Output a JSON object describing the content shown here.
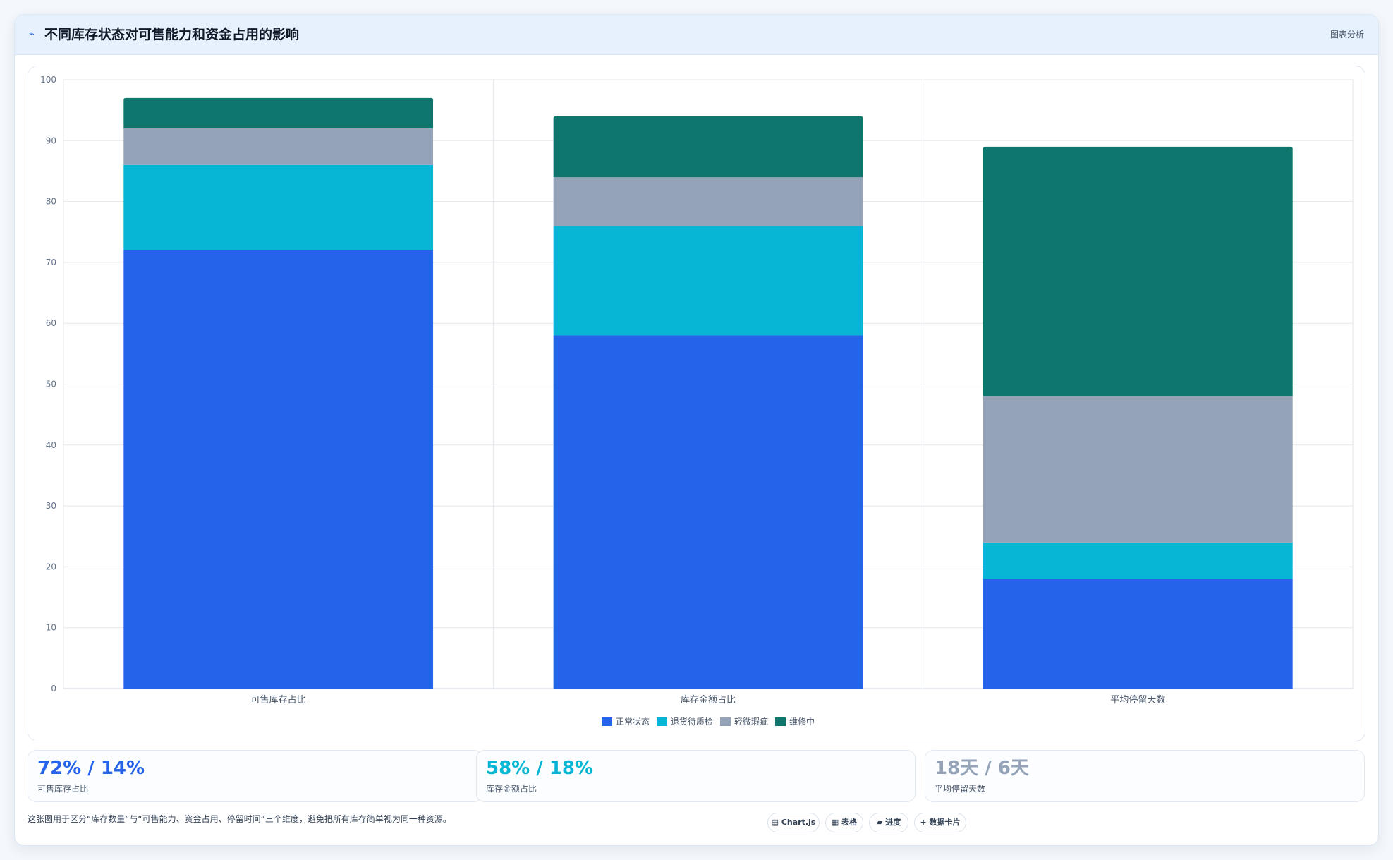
{
  "header": {
    "icon": "trend-icon",
    "title": "不同库存状态对可售能力和资金占用的影响",
    "action_label": "图表分析"
  },
  "chart_data": {
    "type": "bar",
    "stacked": true,
    "title": "",
    "xlabel": "",
    "ylabel": "",
    "categories": [
      "可售库存占比",
      "库存金额占比",
      "平均停留天数"
    ],
    "ylim": [
      0,
      100
    ],
    "yticks": [
      0,
      10,
      20,
      30,
      40,
      50,
      60,
      70,
      80,
      90,
      100
    ],
    "grid": true,
    "legend_position": "bottom",
    "series": [
      {
        "name": "正常状态",
        "color": "#2563eb",
        "values": [
          72,
          58,
          18
        ]
      },
      {
        "name": "退货待质检",
        "color": "#06b6d4",
        "values": [
          14,
          18,
          6
        ]
      },
      {
        "name": "轻微瑕疵",
        "color": "#94a3b8",
        "values": [
          6,
          8,
          24
        ]
      },
      {
        "name": "维修中",
        "color": "#0f766e",
        "values": [
          5,
          10,
          41
        ]
      }
    ]
  },
  "stats": [
    {
      "value": "72% / 14%",
      "label": "可售库存占比",
      "color": "#2563eb"
    },
    {
      "value": "58% / 18%",
      "label": "库存金额占比",
      "color": "#06b6d4"
    },
    {
      "value": "18天 / 6天",
      "label": "平均停留天数",
      "color": "#94a3b8"
    }
  ],
  "footer": {
    "note": "这张图用于区分“库存数量”与“可售能力、资金占用、停留时间”三个维度，避免把所有库存简单视为同一种资源。",
    "chips": [
      {
        "icon": "chart-icon",
        "label": "▤ Chart.js"
      },
      {
        "icon": "table-icon",
        "label": "▦ 表格"
      },
      {
        "icon": "progress-icon",
        "label": "▰ 进度"
      },
      {
        "icon": "card-icon",
        "label": "+ 数据卡片"
      }
    ]
  }
}
